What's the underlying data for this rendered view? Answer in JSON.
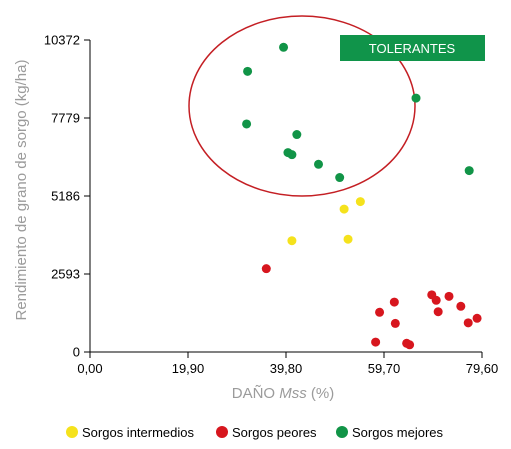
{
  "chart_data": {
    "type": "scatter",
    "xlabel_prefix": "DAÑO ",
    "xlabel_italic": "Mss",
    "xlabel_suffix": " (%)",
    "ylabel": "Rendimiento de grano de sorgo (kg/ha)",
    "xlim": [
      0,
      79.6
    ],
    "ylim": [
      0,
      10372
    ],
    "x_ticks": [
      {
        "value": 0,
        "label": "0,00"
      },
      {
        "value": 19.9,
        "label": "19,90"
      },
      {
        "value": 39.8,
        "label": "39,80"
      },
      {
        "value": 59.7,
        "label": "59,70"
      },
      {
        "value": 79.6,
        "label": "79,60"
      }
    ],
    "y_ticks": [
      {
        "value": 0,
        "label": "0"
      },
      {
        "value": 2593,
        "label": "2593"
      },
      {
        "value": 5186,
        "label": "5186"
      },
      {
        "value": 7779,
        "label": "7779"
      },
      {
        "value": 10372,
        "label": "10372"
      }
    ],
    "grid": false,
    "legend_position": "bottom",
    "annotation": {
      "label": "TOLERANTES",
      "color": "#10944a"
    },
    "series": [
      {
        "name": "Sorgos intermedios",
        "color": "#f5e21c",
        "points": [
          {
            "x": 41.0,
            "y": 3700
          },
          {
            "x": 51.6,
            "y": 4750
          },
          {
            "x": 52.4,
            "y": 3750
          },
          {
            "x": 54.9,
            "y": 5000
          }
        ]
      },
      {
        "name": "Sorgos peores",
        "color": "#d7161e",
        "points": [
          {
            "x": 35.8,
            "y": 2770
          },
          {
            "x": 58.0,
            "y": 330
          },
          {
            "x": 58.8,
            "y": 1320
          },
          {
            "x": 61.8,
            "y": 1660
          },
          {
            "x": 62.0,
            "y": 950
          },
          {
            "x": 64.3,
            "y": 290
          },
          {
            "x": 64.9,
            "y": 240
          },
          {
            "x": 69.4,
            "y": 1900
          },
          {
            "x": 70.3,
            "y": 1720
          },
          {
            "x": 70.7,
            "y": 1340
          },
          {
            "x": 72.9,
            "y": 1850
          },
          {
            "x": 75.3,
            "y": 1520
          },
          {
            "x": 76.8,
            "y": 970
          },
          {
            "x": 78.6,
            "y": 1120
          }
        ]
      },
      {
        "name": "Sorgos mejores",
        "color": "#119447",
        "points": [
          {
            "x": 31.8,
            "y": 7580
          },
          {
            "x": 32.0,
            "y": 9330
          },
          {
            "x": 39.3,
            "y": 10130
          },
          {
            "x": 40.2,
            "y": 6630
          },
          {
            "x": 41.0,
            "y": 6560
          },
          {
            "x": 42.0,
            "y": 7230
          },
          {
            "x": 46.4,
            "y": 6240
          },
          {
            "x": 50.7,
            "y": 5800
          },
          {
            "x": 66.2,
            "y": 8440
          },
          {
            "x": 77.0,
            "y": 6030
          }
        ]
      }
    ]
  }
}
